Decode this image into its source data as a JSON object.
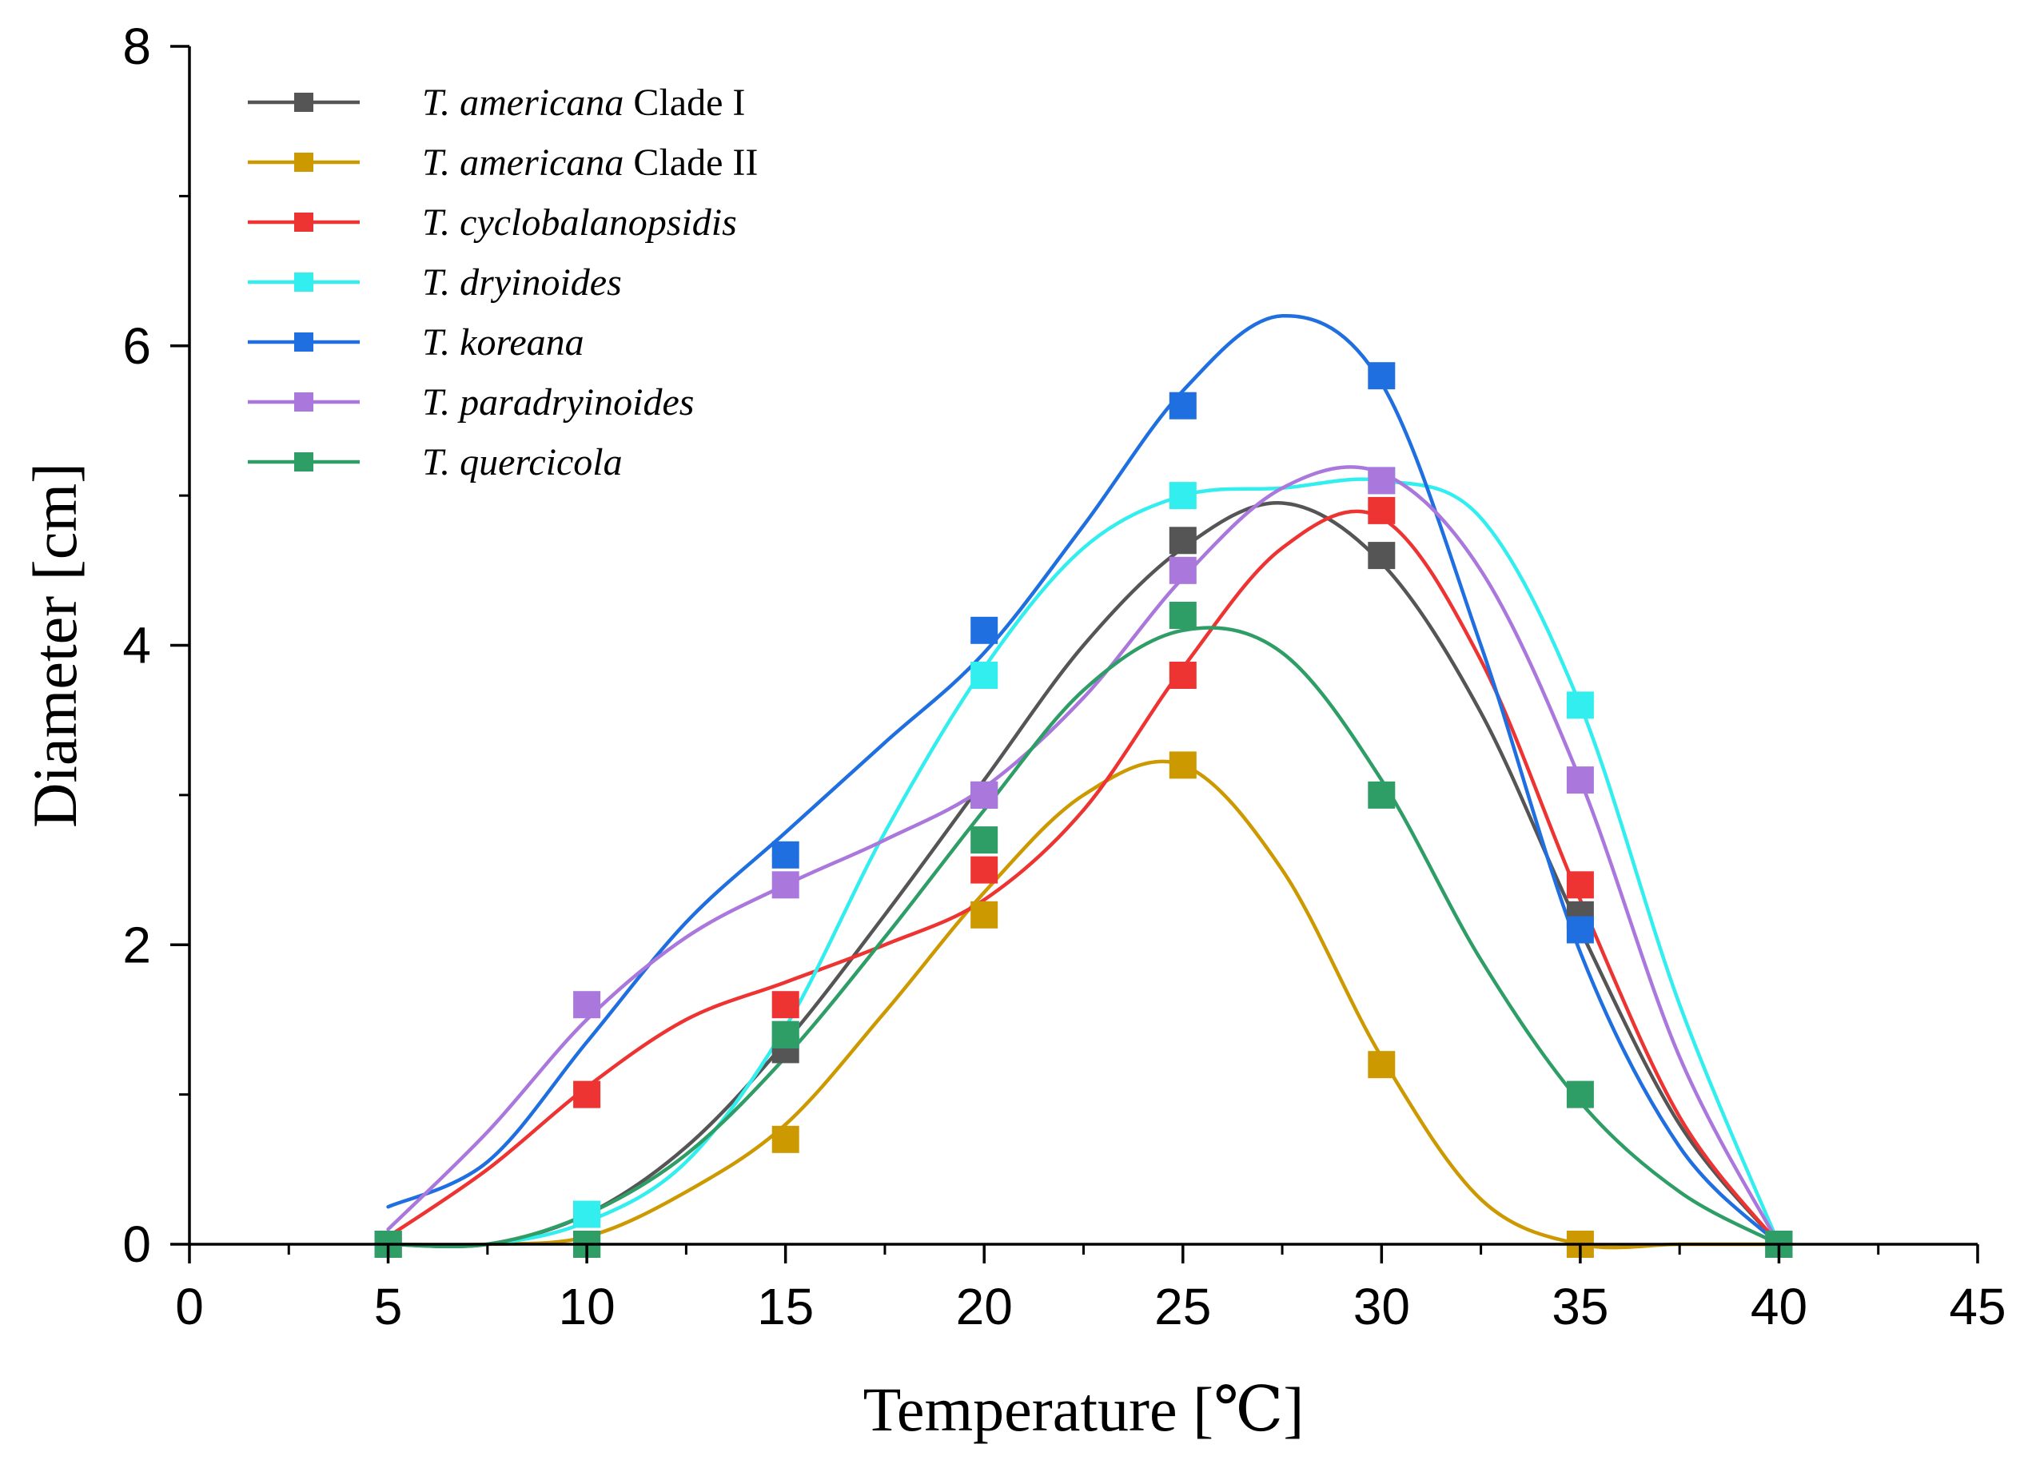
{
  "chart_data": {
    "type": "line",
    "title": "",
    "xlabel": "Temperature [℃]",
    "ylabel": "Diameter [cm]",
    "xlim": [
      0,
      45
    ],
    "ylim": [
      0,
      8
    ],
    "xticks": [
      0,
      5,
      10,
      15,
      20,
      25,
      30,
      35,
      40,
      45
    ],
    "yticks": [
      0,
      2,
      4,
      6,
      8
    ],
    "xtick_labels": [
      "0",
      "5",
      "10",
      "15",
      "20",
      "25",
      "30",
      "35",
      "40",
      "45"
    ],
    "ytick_labels": [
      "0",
      "2",
      "4",
      "6",
      "8"
    ],
    "grid": false,
    "legend_position": "top-left",
    "marker": "square",
    "line_style": "smoothed fit",
    "series": [
      {
        "name": "T. americana Clade I",
        "name_italic": "T. americana",
        "name_plain": " Clade I",
        "color": "#555555",
        "x": [
          5,
          10,
          15,
          20,
          25,
          30,
          35,
          40
        ],
        "y": [
          0,
          0.2,
          1.3,
          3.0,
          4.7,
          4.6,
          2.2,
          0
        ],
        "curve_x": [
          5,
          7.5,
          10,
          12.5,
          15,
          17.5,
          20,
          22.5,
          25,
          27.5,
          30,
          32.5,
          35,
          37.5,
          40
        ],
        "curve_y": [
          0,
          0,
          0.2,
          0.65,
          1.35,
          2.2,
          3.1,
          4.0,
          4.65,
          4.95,
          4.55,
          3.55,
          2.1,
          0.8,
          0
        ]
      },
      {
        "name": "T. americana Clade II",
        "name_italic": "T. americana",
        "name_plain": " Clade II",
        "color": "#CC9900",
        "x": [
          5,
          10,
          15,
          20,
          25,
          30,
          35,
          40
        ],
        "y": [
          0,
          0,
          0.7,
          2.2,
          3.2,
          1.2,
          0,
          0
        ],
        "curve_x": [
          5,
          7.5,
          10,
          12.5,
          15,
          17.5,
          20,
          22.5,
          25,
          27.5,
          30,
          32.5,
          35,
          37.5,
          40
        ],
        "curve_y": [
          0,
          0,
          0.05,
          0.35,
          0.8,
          1.55,
          2.35,
          3.0,
          3.2,
          2.5,
          1.25,
          0.3,
          0,
          0,
          0
        ]
      },
      {
        "name": "T. cyclobalanopsidis",
        "name_italic": "T. cyclobalanopsidis",
        "name_plain": "",
        "color": "#EE3333",
        "x": [
          5,
          10,
          15,
          20,
          25,
          30,
          35,
          40
        ],
        "y": [
          0,
          1.0,
          1.6,
          2.5,
          3.8,
          4.9,
          2.4,
          0
        ],
        "curve_x": [
          5,
          7.5,
          10,
          12.5,
          15,
          17.5,
          20,
          22.5,
          25,
          27.5,
          30,
          32.5,
          35,
          37.5,
          40
        ],
        "curve_y": [
          0.05,
          0.5,
          1.05,
          1.5,
          1.75,
          2.0,
          2.3,
          2.9,
          3.85,
          4.65,
          4.85,
          3.9,
          2.3,
          0.85,
          0
        ]
      },
      {
        "name": "T. dryinoides",
        "name_italic": "T. dryinoides",
        "name_plain": "",
        "color": "#33EEEE",
        "x": [
          5,
          10,
          15,
          20,
          25,
          30,
          35,
          40
        ],
        "y": [
          0,
          0.2,
          1.4,
          3.8,
          5.0,
          5.1,
          3.6,
          0
        ],
        "curve_x": [
          5,
          7.5,
          10,
          12.5,
          15,
          17.5,
          20,
          22.5,
          25,
          27.5,
          30,
          32.5,
          35,
          37.5,
          40
        ],
        "curve_y": [
          0,
          0,
          0.15,
          0.55,
          1.45,
          2.75,
          3.85,
          4.65,
          5.0,
          5.05,
          5.1,
          4.85,
          3.6,
          1.6,
          0
        ]
      },
      {
        "name": "T. koreana",
        "name_italic": "T. koreana",
        "name_plain": "",
        "color": "#1F6FE0",
        "x": [
          5,
          10,
          15,
          20,
          25,
          30,
          35,
          40
        ],
        "y": [
          0,
          0,
          2.6,
          4.1,
          5.6,
          5.8,
          2.1,
          0
        ],
        "curve_x": [
          5,
          7.5,
          10,
          12.5,
          15,
          17.5,
          20,
          22.5,
          25,
          27.5,
          30,
          32.5,
          35,
          37.5,
          40
        ],
        "curve_y": [
          0.25,
          0.55,
          1.35,
          2.15,
          2.75,
          3.35,
          3.95,
          4.8,
          5.7,
          6.2,
          5.75,
          4.0,
          1.95,
          0.65,
          0
        ]
      },
      {
        "name": "T. paradryinoides",
        "name_italic": "T. paradryinoides",
        "name_plain": "",
        "color": "#AA77DD",
        "x": [
          5,
          10,
          15,
          20,
          25,
          30,
          35,
          40
        ],
        "y": [
          0,
          1.6,
          2.4,
          3.0,
          4.5,
          5.1,
          3.1,
          0
        ],
        "curve_x": [
          5,
          7.5,
          10,
          12.5,
          15,
          17.5,
          20,
          22.5,
          25,
          27.5,
          30,
          32.5,
          35,
          37.5,
          40
        ],
        "curve_y": [
          0.1,
          0.75,
          1.5,
          2.05,
          2.4,
          2.7,
          3.05,
          3.65,
          4.45,
          5.05,
          5.15,
          4.5,
          3.1,
          1.25,
          0
        ]
      },
      {
        "name": "T. quercicola",
        "name_italic": "T. quercicola",
        "name_plain": "",
        "color": "#2E9E66",
        "x": [
          5,
          10,
          15,
          20,
          25,
          30,
          35,
          40
        ],
        "y": [
          0,
          0,
          1.4,
          2.7,
          4.2,
          3.0,
          1.0,
          0
        ],
        "curve_x": [
          5,
          7.5,
          10,
          12.5,
          15,
          17.5,
          20,
          22.5,
          25,
          27.5,
          30,
          32.5,
          35,
          37.5,
          40
        ],
        "curve_y": [
          0,
          0,
          0.2,
          0.6,
          1.25,
          2.05,
          2.9,
          3.7,
          4.1,
          3.95,
          3.1,
          1.9,
          0.95,
          0.35,
          0
        ]
      }
    ]
  }
}
